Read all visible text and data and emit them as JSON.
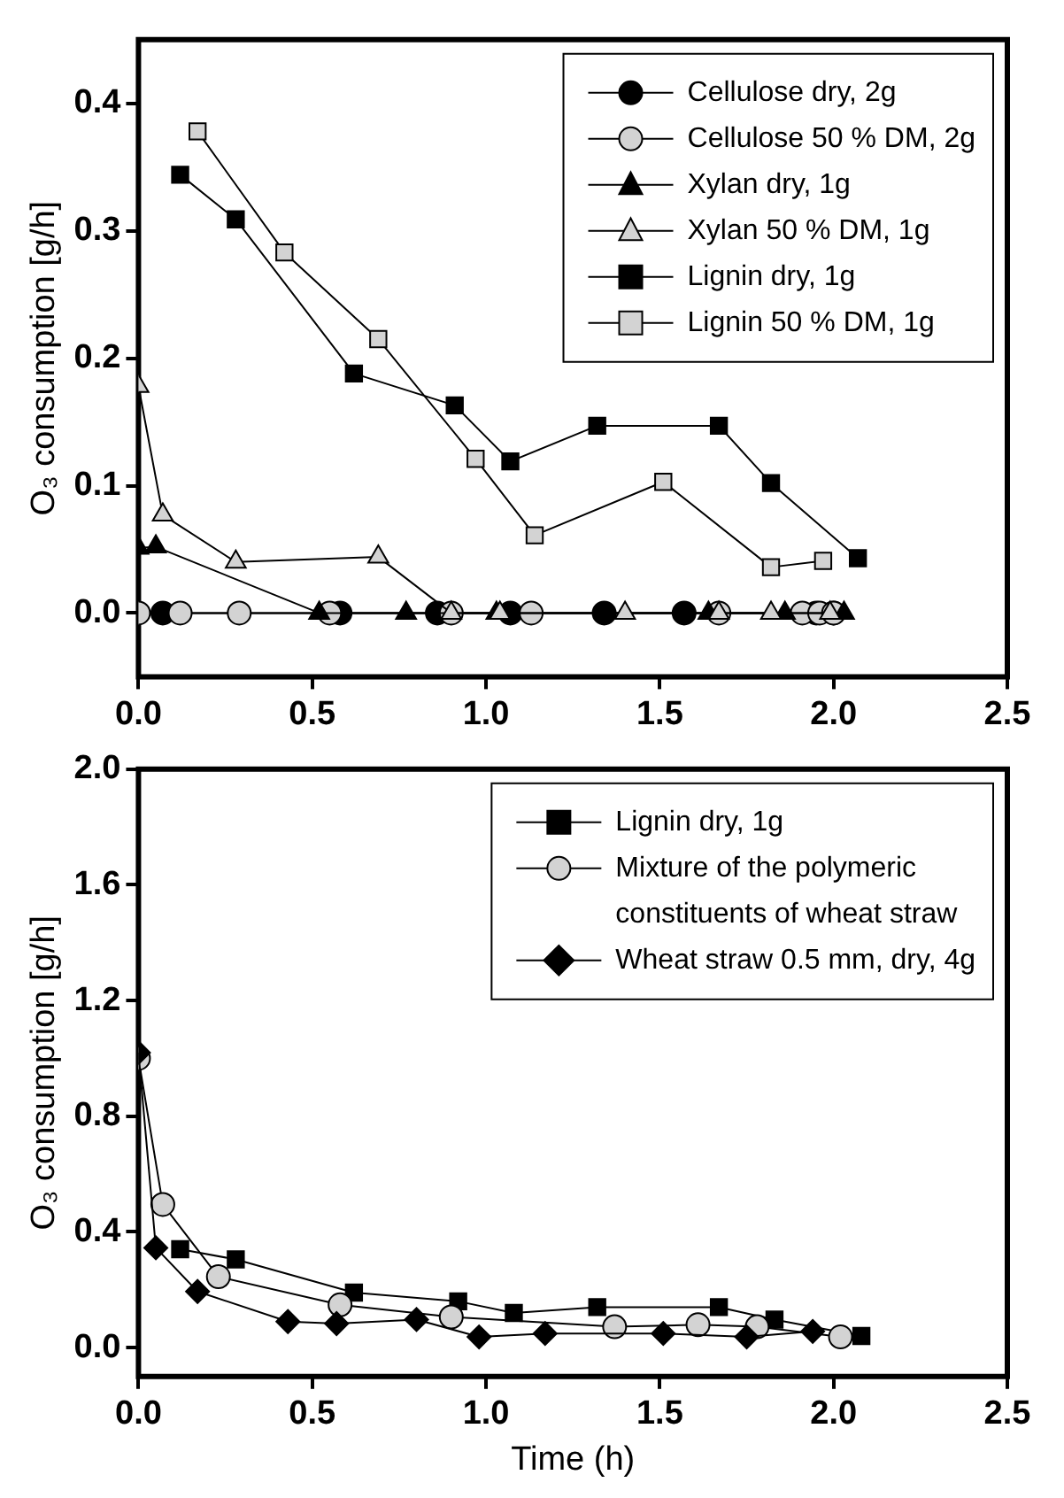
{
  "chart_data": [
    {
      "type": "line",
      "ylabel": "O₃ consumption [g/h]",
      "xlim": [
        0,
        2.5
      ],
      "ylim": [
        -0.05,
        0.45
      ],
      "xticks": [
        {
          "value": 0,
          "label": "0.0"
        },
        {
          "value": 0.5,
          "label": "0.5"
        },
        {
          "value": 1,
          "label": "1.0"
        },
        {
          "value": 1.5,
          "label": "1.5"
        },
        {
          "value": 2,
          "label": "2.0"
        },
        {
          "value": 2.5,
          "label": "2.5"
        }
      ],
      "yticks": [
        {
          "value": 0,
          "label": "0.0"
        },
        {
          "value": 0.1,
          "label": "0.1"
        },
        {
          "value": 0.2,
          "label": "0.2"
        },
        {
          "value": 0.3,
          "label": "0.3"
        },
        {
          "value": 0.4,
          "label": "0.4"
        }
      ],
      "grid": false,
      "legend": "top right",
      "line_style": "solid",
      "series": [
        {
          "name": "Cellulose dry, 2g",
          "color": "#000000",
          "marker": "circle",
          "x": [
            0.07,
            0.58,
            0.86,
            1.07,
            1.34,
            1.57,
            1.95,
            2.0
          ],
          "values": [
            0,
            0,
            0,
            0,
            0,
            0,
            0,
            0
          ]
        },
        {
          "name": "Cellulose 50 % DM, 2g",
          "color": "#d3d3d3",
          "marker": "circle",
          "x": [
            0,
            0.12,
            0.29,
            0.55,
            0.9,
            1.13,
            1.67,
            1.91,
            1.96,
            2.0
          ],
          "values": [
            0,
            0,
            0,
            0,
            0,
            0,
            0,
            0,
            0,
            0
          ]
        },
        {
          "name": "Xylan dry, 1g",
          "color": "#000000",
          "marker": "triangle",
          "x": [
            0,
            0.05,
            0.52,
            0.77,
            1.03,
            1.64,
            1.86,
            2.03
          ],
          "values": [
            0.051,
            0.052,
            0,
            0,
            0,
            0,
            0,
            0
          ]
        },
        {
          "name": "Xylan 50 % DM, 1g",
          "color": "#d3d3d3",
          "marker": "triangle",
          "x": [
            0,
            0.07,
            0.28,
            0.69,
            0.9,
            1.04,
            1.4,
            1.67,
            1.82,
            1.99
          ],
          "values": [
            0.178,
            0.077,
            0.04,
            0.044,
            0,
            0,
            0,
            0,
            0,
            0
          ]
        },
        {
          "name": "Lignin dry, 1g",
          "color": "#000000",
          "marker": "square",
          "x": [
            0.12,
            0.28,
            0.62,
            0.91,
            1.07,
            1.32,
            1.67,
            1.82,
            2.07
          ],
          "values": [
            0.344,
            0.309,
            0.188,
            0.163,
            0.119,
            0.147,
            0.147,
            0.102,
            0.043
          ]
        },
        {
          "name": "Lignin 50 % DM, 1g",
          "color": "#d3d3d3",
          "marker": "square",
          "x": [
            0.17,
            0.42,
            0.69,
            0.97,
            1.14,
            1.51,
            1.82,
            1.97
          ],
          "values": [
            0.378,
            0.283,
            0.215,
            0.121,
            0.061,
            0.103,
            0.036,
            0.041
          ]
        }
      ]
    },
    {
      "type": "line",
      "xlabel": "Time (h)",
      "ylabel": "O₃ consumption [g/h]",
      "xlim": [
        0,
        2.5
      ],
      "ylim": [
        -0.1,
        2.0
      ],
      "xticks": [
        {
          "value": 0,
          "label": "0.0"
        },
        {
          "value": 0.5,
          "label": "0.5"
        },
        {
          "value": 1,
          "label": "1.0"
        },
        {
          "value": 1.5,
          "label": "1.5"
        },
        {
          "value": 2,
          "label": "2.0"
        },
        {
          "value": 2.5,
          "label": "2.5"
        }
      ],
      "yticks": [
        {
          "value": 0,
          "label": "0.0"
        },
        {
          "value": 0.4,
          "label": "0.4"
        },
        {
          "value": 0.8,
          "label": "0.8"
        },
        {
          "value": 1.2,
          "label": "1.2"
        },
        {
          "value": 1.6,
          "label": "1.6"
        },
        {
          "value": 2,
          "label": "2.0"
        }
      ],
      "grid": false,
      "legend": "top right",
      "line_style": "solid",
      "series": [
        {
          "name": "Lignin dry, 1g",
          "color": "#000000",
          "marker": "square",
          "x": [
            0.12,
            0.28,
            0.62,
            0.92,
            1.08,
            1.32,
            1.67,
            1.83,
            2.08
          ],
          "values": [
            0.34,
            0.305,
            0.19,
            0.16,
            0.12,
            0.14,
            0.14,
            0.097,
            0.04
          ]
        },
        {
          "name": "Mixture of the polymeric constituents of wheat straw",
          "color": "#d3d3d3",
          "marker": "circle",
          "x": [
            0,
            0.07,
            0.23,
            0.58,
            0.9,
            1.37,
            1.61,
            1.78,
            2.02
          ],
          "values": [
            1.0,
            0.495,
            0.245,
            0.148,
            0.106,
            0.072,
            0.079,
            0.072,
            0.037
          ]
        },
        {
          "name": "Wheat straw 0.5 mm, dry, 4g",
          "color": "#000000",
          "marker": "diamond",
          "x": [
            0,
            0.05,
            0.17,
            0.43,
            0.57,
            0.8,
            0.98,
            1.17,
            1.51,
            1.75,
            1.94
          ],
          "values": [
            1.02,
            0.345,
            0.194,
            0.09,
            0.083,
            0.097,
            0.037,
            0.049,
            0.049,
            0.037,
            0.056
          ]
        }
      ]
    }
  ]
}
